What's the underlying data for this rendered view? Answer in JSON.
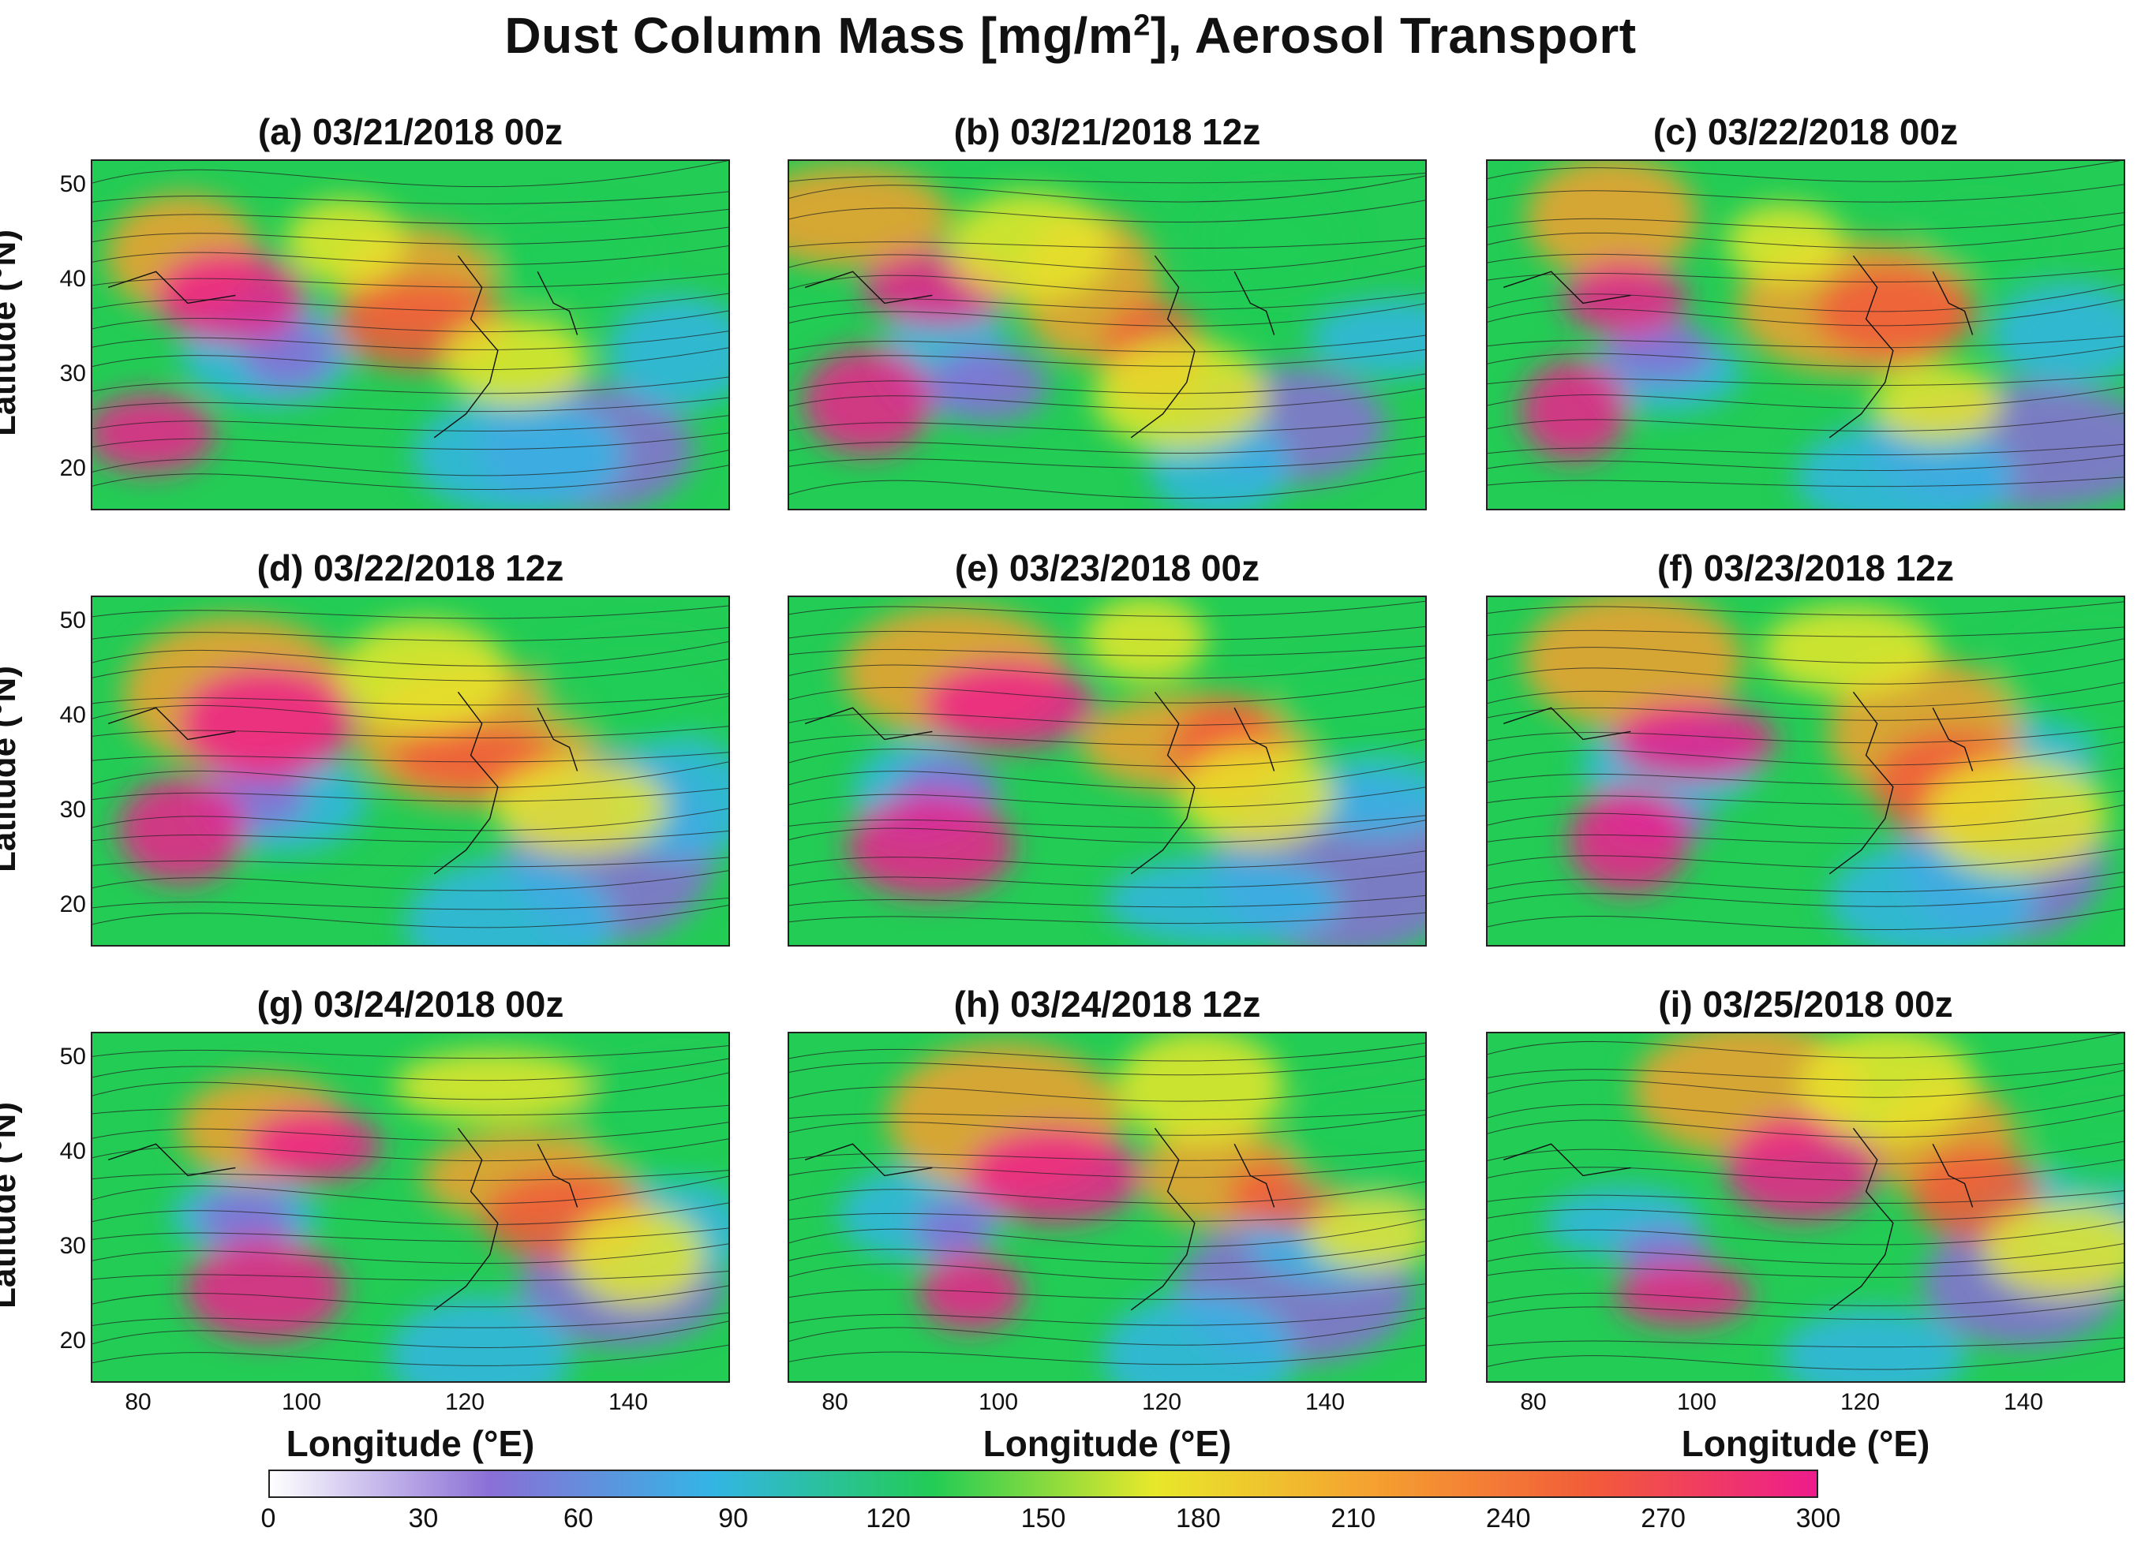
{
  "figure": {
    "title_main": "Dust Column Mass [mg/m",
    "title_sup": "2",
    "title_rest": "], Aerosol Transport"
  },
  "axes": {
    "ylabel": "Latitude (°N)",
    "xlabel": "Longitude (°E)",
    "lat_ticks": [
      "50",
      "40",
      "30",
      "20"
    ],
    "lon_ticks": [
      "80",
      "100",
      "120",
      "140"
    ]
  },
  "panels": [
    {
      "label": "(a) 03/21/2018 00z"
    },
    {
      "label": "(b) 03/21/2018 12z"
    },
    {
      "label": "(c) 03/22/2018 00z"
    },
    {
      "label": "(d) 03/22/2018 12z"
    },
    {
      "label": "(e) 03/23/2018 00z"
    },
    {
      "label": "(f) 03/23/2018 12z"
    },
    {
      "label": "(g) 03/24/2018 00z"
    },
    {
      "label": "(h) 03/24/2018 12z"
    },
    {
      "label": "(i) 03/25/2018 00z"
    }
  ],
  "colorbar": {
    "ticks": [
      "0",
      "30",
      "60",
      "90",
      "120",
      "150",
      "180",
      "210",
      "240",
      "270",
      "300"
    ],
    "min": 0,
    "max": 300,
    "colors": [
      "#ffffff",
      "#8a6fd6",
      "#33b5e5",
      "#22cc55",
      "#e8e82a",
      "#f5a030",
      "#f25a3a",
      "#ee1c8c"
    ]
  }
}
